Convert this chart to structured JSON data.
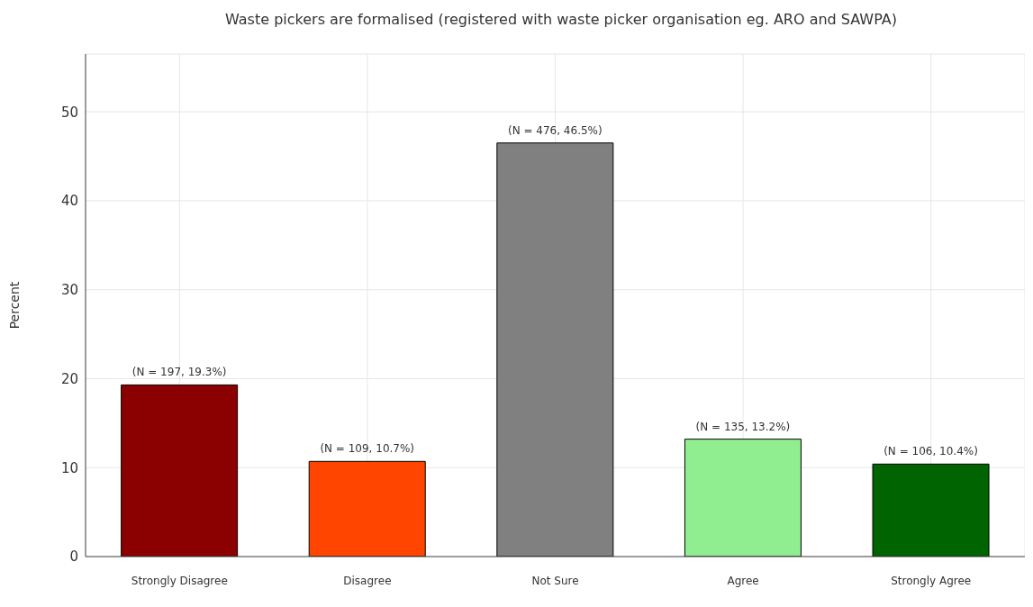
{
  "chart_data": {
    "type": "bar",
    "title": "Waste pickers are formalised (registered with waste picker organisation eg. ARO and SAWPA)",
    "ylabel": "Percent",
    "categories": [
      "Strongly Disagree",
      "Disagree",
      "Not Sure",
      "Agree",
      "Strongly Agree"
    ],
    "values": [
      19.3,
      10.7,
      46.5,
      13.2,
      10.4
    ],
    "colors": [
      "#8b0000",
      "#ff4500",
      "#808080",
      "#90ee90",
      "#006400"
    ],
    "value_labels": [
      "(N = 197, 19.3%)",
      "(N = 109, 10.7%)",
      "(N = 476, 46.5%)",
      "(N = 135, 13.2%)",
      "(N = 106, 10.4%)"
    ],
    "ylim": [
      0,
      56.5
    ],
    "yticks": [
      0,
      10,
      20,
      30,
      40,
      50
    ],
    "grid": true
  }
}
